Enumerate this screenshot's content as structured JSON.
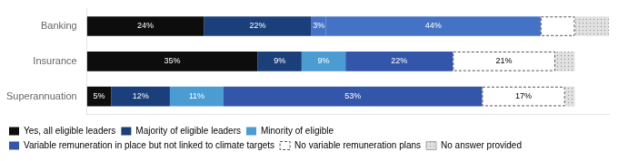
{
  "chart_data": {
    "type": "bar",
    "orientation": "horizontal",
    "stacked": true,
    "categories": [
      "Banking",
      "Insurance",
      "Superannuation"
    ],
    "xlim": [
      0,
      107
    ],
    "xticks": [],
    "grid": false,
    "tick_labels": "y",
    "data_labels": true,
    "legend": "bottom",
    "series": [
      {
        "name": "Yes, all eligible leaders",
        "color": "#0d0d0d",
        "values": [
          24,
          35,
          5
        ],
        "value_labels": [
          "24%",
          "35%",
          "5%"
        ]
      },
      {
        "name": "Majority of eligible leaders",
        "color": "#1a3f7a",
        "values": [
          22,
          9,
          12
        ],
        "value_labels": [
          "22%",
          "9%",
          "12%"
        ]
      },
      {
        "name": "Minority of eligible",
        "color": "#4b9cd3",
        "colors": [
          "#4472c4",
          "#4b9cd3",
          "#4b9cd3"
        ],
        "values": [
          3,
          9,
          11
        ],
        "value_labels": [
          "3%",
          "9%",
          "11%"
        ]
      },
      {
        "name": "Variable remuneration in place but not linked to climate targets",
        "color": "#3355aa",
        "colors": [
          "#4472c4",
          "#3355aa",
          "#3355aa"
        ],
        "values": [
          44,
          22,
          53
        ],
        "value_labels": [
          "44%",
          "22%",
          "53%"
        ]
      },
      {
        "name": "No variable remuneration plans",
        "color": "#ffffff",
        "line_style": "dashed",
        "values": [
          7,
          21,
          17
        ],
        "value_labels": [
          null,
          "21%",
          "17%"
        ]
      },
      {
        "name": "No answer provided",
        "color": "#e0e0e0",
        "line_style": "dotted",
        "values": [
          7,
          4,
          2
        ],
        "value_labels": [
          null,
          null,
          null
        ]
      }
    ]
  }
}
